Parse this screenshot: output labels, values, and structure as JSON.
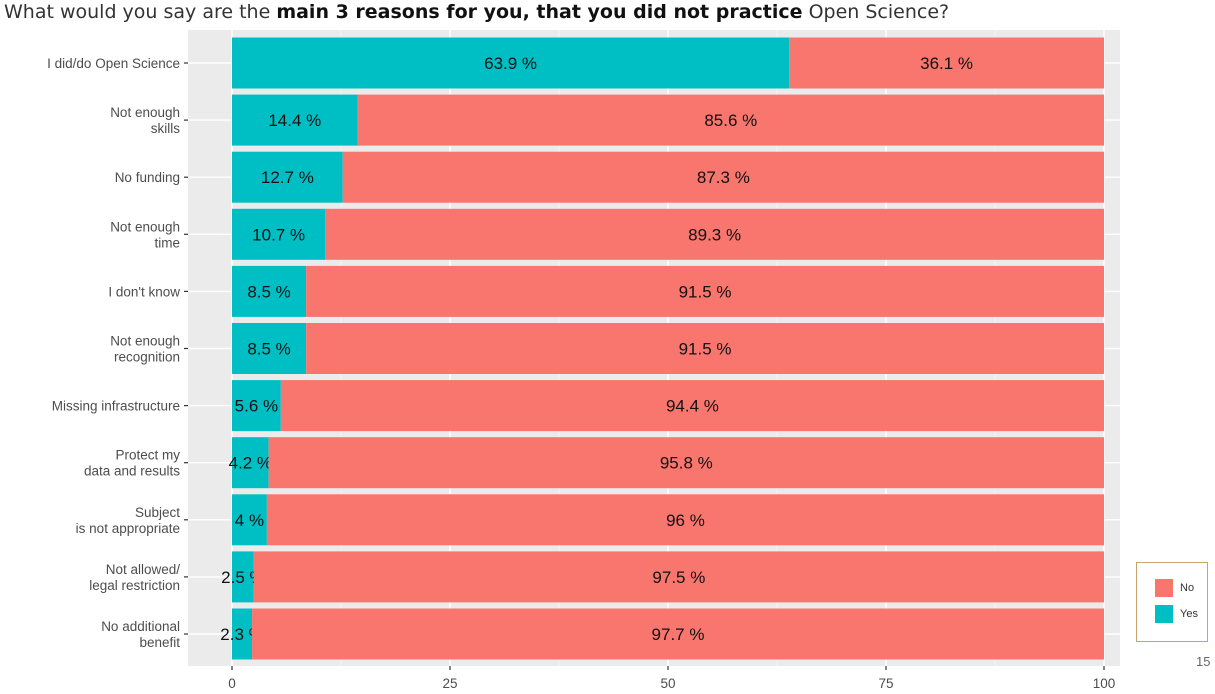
{
  "title": {
    "part1": "What would you say are the ",
    "bold": "main 3 reasons for you, that you did not practice",
    "part2": " Open Science?"
  },
  "page_number": "15",
  "chart_data": {
    "type": "bar",
    "orientation": "horizontal",
    "stacked": true,
    "categories": [
      "I did/do Open Science",
      "Not enough\nskills",
      "No funding",
      "Not enough\ntime",
      "I don't know",
      "Not enough\nrecognition",
      "Missing infrastructure",
      "Protect my\ndata and results",
      "Subject\nis not appropriate",
      "Not allowed/\nlegal restriction",
      "No additional\nbenefit"
    ],
    "series": [
      {
        "name": "Yes",
        "color": "#00bfc4",
        "values": [
          63.9,
          14.4,
          12.7,
          10.7,
          8.5,
          8.5,
          5.6,
          4.2,
          4,
          2.5,
          2.3
        ],
        "labels": [
          "63.9 %",
          "14.4 %",
          "12.7 %",
          "10.7 %",
          "8.5 %",
          "8.5 %",
          "5.6 %",
          "4.2 %",
          "4 %",
          "2.5 %",
          "2.3 %"
        ]
      },
      {
        "name": "No",
        "color": "#f8766d",
        "values": [
          36.1,
          85.6,
          87.3,
          89.3,
          91.5,
          91.5,
          94.4,
          95.8,
          96,
          97.5,
          97.7
        ],
        "labels": [
          "36.1 %",
          "85.6 %",
          "87.3 %",
          "89.3 %",
          "91.5 %",
          "91.5 %",
          "94.4 %",
          "95.8 %",
          "96 %",
          "97.5 %",
          "97.7 %"
        ]
      }
    ],
    "xlim": [
      0,
      100
    ],
    "xticks": [
      0,
      25,
      50,
      75,
      100
    ],
    "xlabel": "",
    "ylabel": "",
    "grid": true,
    "legend": {
      "placement": "bottom-right",
      "entries": [
        {
          "name": "No",
          "color": "#f8766d"
        },
        {
          "name": "Yes",
          "color": "#00bfc4"
        }
      ]
    },
    "panel_background": "#ebebeb"
  }
}
